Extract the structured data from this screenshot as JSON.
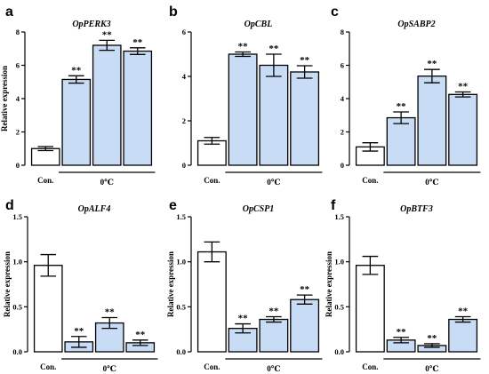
{
  "chart_data": [
    {
      "type": "bar",
      "panel": "a",
      "title": "OpPERK3",
      "ylabel": "Relative expression",
      "ylim": [
        0,
        8
      ],
      "yticks": [
        "0",
        "2",
        "4",
        "6",
        "8"
      ],
      "categories": [
        "Con.",
        "",
        "",
        ""
      ],
      "group_label": "0℃",
      "values": [
        1.0,
        5.15,
        7.2,
        6.85
      ],
      "errors": [
        0.12,
        0.22,
        0.3,
        0.2
      ],
      "significance": [
        "",
        "**",
        "**",
        "**"
      ]
    },
    {
      "type": "bar",
      "panel": "b",
      "title": "OpCBL",
      "ylabel": "",
      "ylim": [
        0,
        6
      ],
      "yticks": [
        "0",
        "2",
        "4",
        "6"
      ],
      "categories": [
        "Con.",
        "",
        "",
        ""
      ],
      "group_label": "0℃",
      "values": [
        1.1,
        5.0,
        4.5,
        4.2
      ],
      "errors": [
        0.15,
        0.1,
        0.5,
        0.28
      ],
      "significance": [
        "",
        "**",
        "**",
        "**"
      ]
    },
    {
      "type": "bar",
      "panel": "c",
      "title": "OpSABP2",
      "ylabel": "",
      "ylim": [
        0,
        8
      ],
      "yticks": [
        "0",
        "2",
        "4",
        "6",
        "8"
      ],
      "categories": [
        "Con.",
        "",
        "",
        ""
      ],
      "group_label": "0℃",
      "values": [
        1.1,
        2.85,
        5.35,
        4.25
      ],
      "errors": [
        0.25,
        0.35,
        0.4,
        0.15
      ],
      "significance": [
        "",
        "**",
        "**",
        "**"
      ]
    },
    {
      "type": "bar",
      "panel": "d",
      "title": "OpALF4",
      "ylabel": "Relative expression",
      "ylim": [
        0,
        1.5
      ],
      "yticks": [
        "0.0",
        "0.5",
        "1.0",
        "1.5"
      ],
      "categories": [
        "Con.",
        "",
        "",
        ""
      ],
      "group_label": "0℃",
      "values": [
        0.96,
        0.11,
        0.32,
        0.1
      ],
      "errors": [
        0.12,
        0.06,
        0.06,
        0.03
      ],
      "significance": [
        "",
        "**",
        "**",
        "**"
      ]
    },
    {
      "type": "bar",
      "panel": "e",
      "title": "OpCSP1",
      "ylabel": "Relative expression",
      "ylim": [
        0,
        1.5
      ],
      "yticks": [
        "0.0",
        "0.5",
        "1.0",
        "1.5"
      ],
      "categories": [
        "Con.",
        "",
        "",
        ""
      ],
      "group_label": "0℃",
      "values": [
        1.11,
        0.26,
        0.36,
        0.58
      ],
      "errors": [
        0.11,
        0.05,
        0.03,
        0.05
      ],
      "significance": [
        "",
        "**",
        "**",
        "**"
      ]
    },
    {
      "type": "bar",
      "panel": "f",
      "title": "OpBTF3",
      "ylabel": "Relative expression",
      "ylim": [
        0,
        1.5
      ],
      "yticks": [
        "0.0",
        "0.5",
        "1.0",
        "1.5"
      ],
      "categories": [
        "Con.",
        "",
        "",
        ""
      ],
      "group_label": "0℃",
      "values": [
        0.96,
        0.13,
        0.07,
        0.36
      ],
      "errors": [
        0.1,
        0.03,
        0.02,
        0.03
      ],
      "significance": [
        "",
        "**",
        "**",
        "**"
      ]
    }
  ],
  "colors": {
    "control_fill": "#ffffff",
    "treatment_fill": "#c9dcf5",
    "stroke": "#000000"
  }
}
